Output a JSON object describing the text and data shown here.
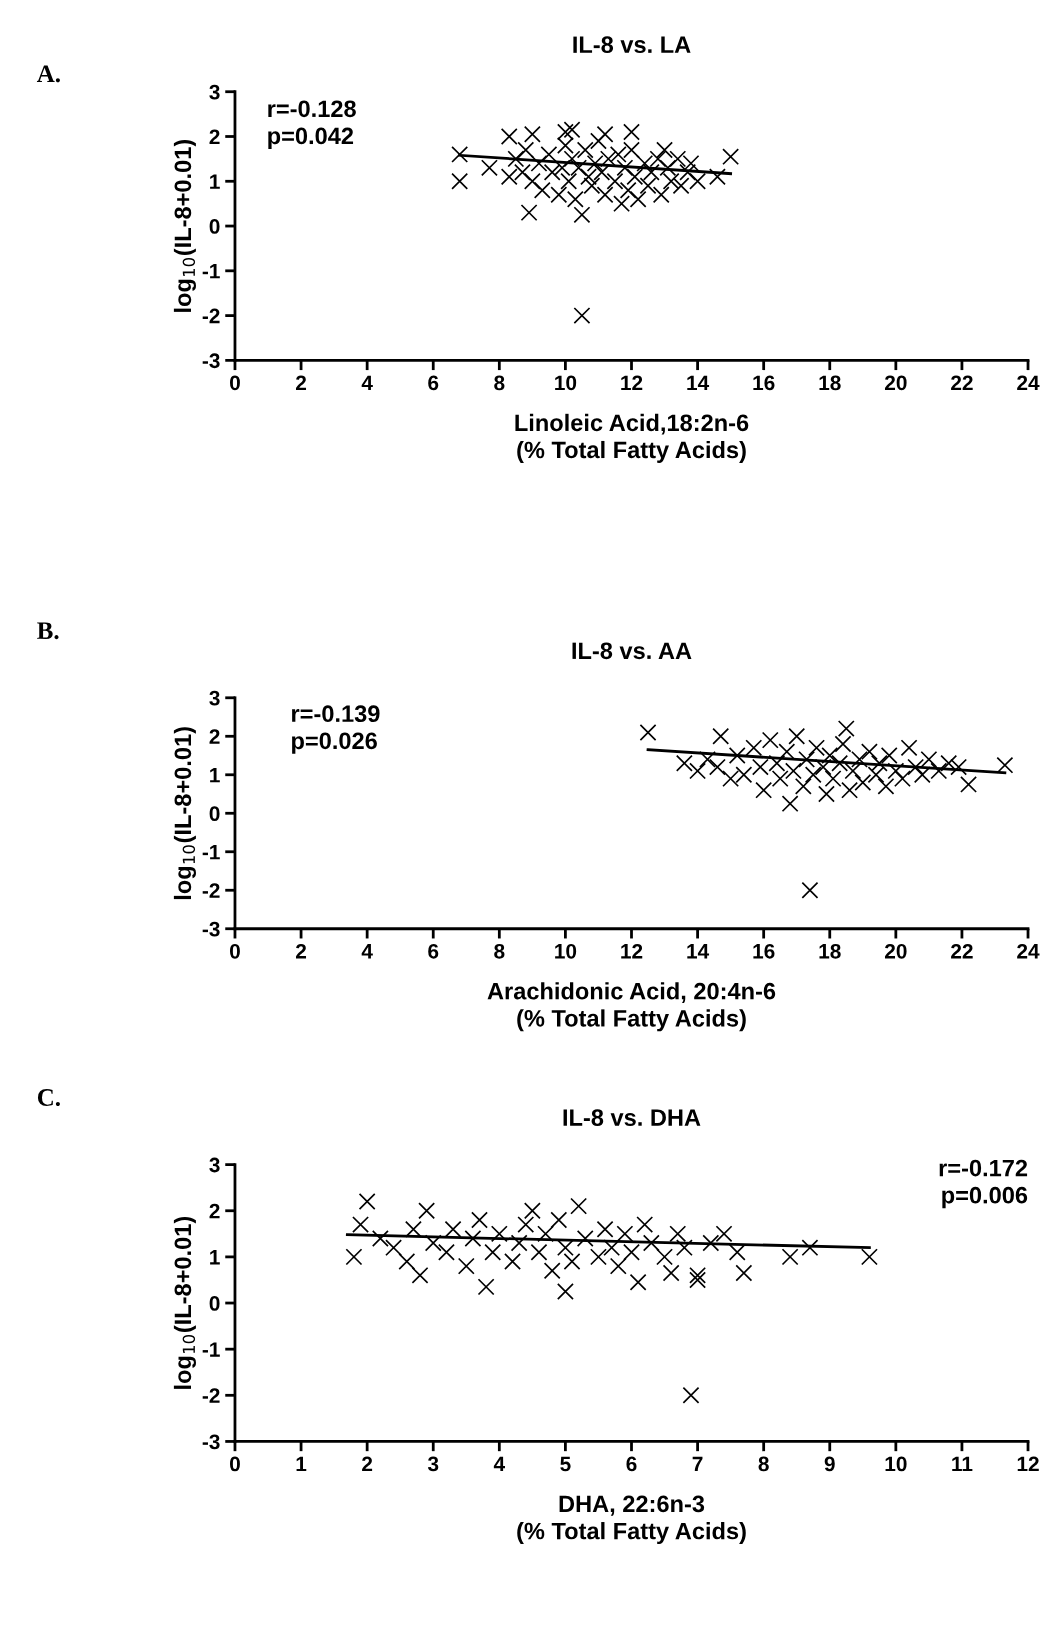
{
  "chart_data": [
    {
      "type": "scatter",
      "title": "IL-8 vs. LA",
      "xlabel": "Linoleic Acid,18:2n-6\n(% Total Fatty Acids)",
      "ylabel": "log$_{10}$(IL-8+0.01)",
      "annotations": [
        "A.",
        "r=-0.128\np=0.042"
      ],
      "xlim": [
        0,
        24
      ],
      "xticks": [
        0,
        2,
        4,
        6,
        8,
        10,
        12,
        14,
        16,
        18,
        20,
        22,
        24
      ],
      "ylim": [
        -3,
        3
      ],
      "yticks": [
        -3,
        -2,
        -1,
        0,
        1,
        2,
        3
      ],
      "grid": false,
      "legend": false,
      "series": [
        {
          "marker": "cross",
          "color": "#000000",
          "x": [
            6.8,
            6.8,
            7.7,
            8.9,
            10.5,
            10.5,
            15.0,
            14.6,
            8.3,
            9.0,
            10.0,
            10.2,
            11.2,
            12.0,
            13.0,
            8.3,
            8.5,
            8.7,
            8.8,
            9.0,
            9.2,
            9.3,
            9.5,
            9.6,
            9.8,
            9.9,
            10.0,
            10.1,
            10.2,
            10.3,
            10.4,
            10.6,
            10.7,
            10.8,
            10.9,
            11.0,
            11.1,
            11.2,
            11.3,
            11.5,
            11.6,
            11.7,
            11.8,
            11.9,
            12.0,
            12.1,
            12.2,
            12.4,
            12.5,
            12.6,
            12.8,
            12.9,
            13.1,
            13.2,
            13.4,
            13.5,
            13.7,
            13.8,
            14.0
          ],
          "values": [
            1.6,
            1.0,
            1.3,
            0.3,
            0.25,
            -2.0,
            1.55,
            1.1,
            2.0,
            2.05,
            2.1,
            2.15,
            2.05,
            2.1,
            1.7,
            1.1,
            1.5,
            1.2,
            1.7,
            1.0,
            1.4,
            0.8,
            1.6,
            1.2,
            0.7,
            1.3,
            1.8,
            1.0,
            1.5,
            0.6,
            1.3,
            1.7,
            1.1,
            0.9,
            1.4,
            1.9,
            1.2,
            0.7,
            1.5,
            1.0,
            1.6,
            0.5,
            1.3,
            0.8,
            1.7,
            1.1,
            0.6,
            1.4,
            0.9,
            1.2,
            1.5,
            0.7,
            1.3,
            1.0,
            1.5,
            0.9,
            1.2,
            1.4,
            1.0
          ]
        },
        {
          "type": "line",
          "marker": "none",
          "line_style": "solid",
          "color": "#000000",
          "x": [
            6.8,
            15.0
          ],
          "values": [
            1.58,
            1.17
          ]
        }
      ]
    },
    {
      "type": "scatter",
      "title": "IL-8 vs. AA",
      "xlabel": "Arachidonic Acid, 20:4n-6\n(% Total Fatty Acids)",
      "ylabel": "log$_{10}$(IL-8+0.01)",
      "annotations": [
        "B.",
        "r=-0.139\np=0.026"
      ],
      "xlim": [
        0,
        24
      ],
      "xticks": [
        0,
        2,
        4,
        6,
        8,
        10,
        12,
        14,
        16,
        18,
        20,
        22,
        24
      ],
      "ylim": [
        -3,
        3
      ],
      "yticks": [
        -3,
        -2,
        -1,
        0,
        1,
        2,
        3
      ],
      "grid": false,
      "legend": false,
      "series": [
        {
          "marker": "cross",
          "color": "#000000",
          "x": [
            12.5,
            17.4,
            23.3,
            22.2,
            16.8,
            14.7,
            18.5,
            13.6,
            14.0,
            14.3,
            14.6,
            15.0,
            15.2,
            15.4,
            15.7,
            15.9,
            16.0,
            16.2,
            16.4,
            16.5,
            16.7,
            16.9,
            17.0,
            17.2,
            17.3,
            17.5,
            17.6,
            17.8,
            17.9,
            18.0,
            18.1,
            18.3,
            18.4,
            18.6,
            18.7,
            18.9,
            19.0,
            19.2,
            19.4,
            19.5,
            19.7,
            19.8,
            20.0,
            20.2,
            20.4,
            20.6,
            20.8,
            21.0,
            21.3,
            21.6,
            21.9
          ],
          "values": [
            2.1,
            -2.0,
            1.25,
            0.75,
            0.25,
            2.0,
            2.2,
            1.3,
            1.1,
            1.4,
            1.2,
            0.9,
            1.5,
            1.0,
            1.7,
            1.2,
            0.6,
            1.9,
            1.3,
            0.9,
            1.6,
            1.1,
            2.0,
            0.7,
            1.4,
            1.0,
            1.7,
            1.2,
            0.5,
            1.5,
            0.9,
            1.3,
            1.8,
            0.6,
            1.1,
            1.4,
            0.8,
            1.6,
            1.0,
            1.3,
            0.7,
            1.5,
            1.1,
            0.9,
            1.7,
            1.2,
            1.0,
            1.4,
            1.1,
            1.3,
            1.2
          ]
        },
        {
          "type": "line",
          "marker": "none",
          "line_style": "solid",
          "color": "#000000",
          "x": [
            12.5,
            23.3
          ],
          "values": [
            1.65,
            1.05
          ]
        }
      ]
    },
    {
      "type": "scatter",
      "title": "IL-8 vs. DHA",
      "xlabel": "DHA, 22:6n-3\n(% Total Fatty Acids)",
      "ylabel": "log$_{10}$(IL-8+0.01)",
      "annotations": [
        "C.",
        "r=-0.172\np=0.006"
      ],
      "xlim": [
        0,
        12
      ],
      "xticks": [
        0,
        1,
        2,
        3,
        4,
        5,
        6,
        7,
        8,
        9,
        10,
        11,
        12
      ],
      "ylim": [
        -3,
        3
      ],
      "yticks": [
        -3,
        -2,
        -1,
        0,
        1,
        2,
        3
      ],
      "grid": false,
      "legend": false,
      "series": [
        {
          "marker": "cross",
          "color": "#000000",
          "x": [
            2.0,
            9.6,
            8.7,
            8.4,
            7.7,
            6.9,
            5.0,
            3.8,
            7.0,
            1.8,
            1.9,
            2.2,
            2.4,
            2.6,
            2.7,
            2.8,
            2.9,
            3.0,
            3.2,
            3.3,
            3.5,
            3.6,
            3.7,
            3.9,
            4.0,
            4.2,
            4.3,
            4.4,
            4.5,
            4.6,
            4.7,
            4.8,
            4.9,
            5.0,
            5.1,
            5.2,
            5.3,
            5.5,
            5.6,
            5.7,
            5.8,
            5.9,
            6.0,
            6.1,
            6.2,
            6.3,
            6.5,
            6.6,
            6.7,
            6.8,
            7.0,
            7.2,
            7.4,
            7.6
          ],
          "values": [
            2.2,
            1.0,
            1.2,
            1.0,
            0.65,
            -2.0,
            0.25,
            0.35,
            0.5,
            1.0,
            1.7,
            1.4,
            1.2,
            0.9,
            1.6,
            0.6,
            2.0,
            1.3,
            1.1,
            1.6,
            0.8,
            1.4,
            1.8,
            1.1,
            1.5,
            0.9,
            1.3,
            1.7,
            2.0,
            1.1,
            1.5,
            0.7,
            1.8,
            1.2,
            0.9,
            2.1,
            1.4,
            1.0,
            1.6,
            1.2,
            0.8,
            1.5,
            1.1,
            0.45,
            1.7,
            1.3,
            1.0,
            0.65,
            1.5,
            1.2,
            0.6,
            1.3,
            1.5,
            1.1
          ]
        },
        {
          "type": "line",
          "marker": "none",
          "line_style": "solid",
          "color": "#000000",
          "x": [
            1.7,
            9.6
          ],
          "values": [
            1.48,
            1.2
          ]
        }
      ]
    }
  ]
}
